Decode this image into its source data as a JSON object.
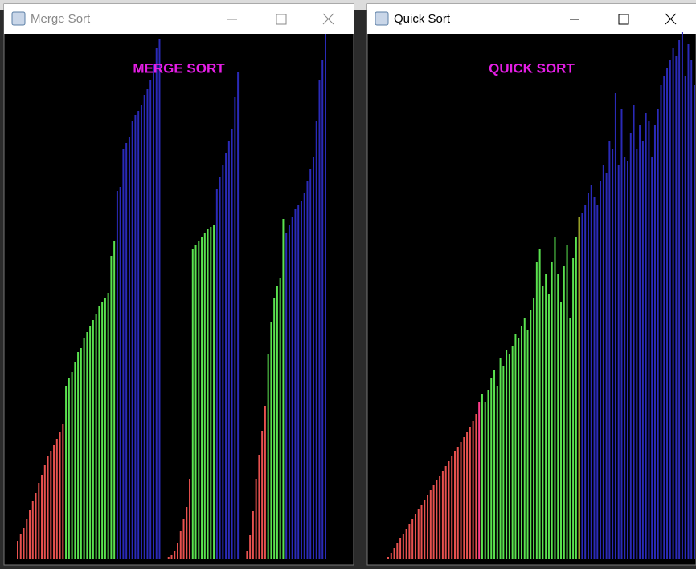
{
  "windows": [
    {
      "title": "Merge Sort",
      "heading": "MERGE SORT",
      "segments": [
        {
          "color": "#e8514f",
          "values": [
            23,
            31,
            39,
            50,
            61,
            73,
            83,
            95,
            105,
            117,
            129,
            135,
            142,
            150,
            158,
            168
          ]
        },
        {
          "color": "#5ae24f",
          "values": [
            215,
            225,
            233,
            245,
            258,
            263,
            275,
            282,
            290,
            298,
            305,
            315,
            320,
            325,
            331,
            377,
            395
          ]
        },
        {
          "color": "#2a2ab8",
          "values": [
            458,
            463,
            510,
            517,
            525,
            545,
            552,
            557,
            565,
            577,
            585,
            595,
            615,
            635,
            647,
            0,
            0
          ]
        },
        {
          "color": "#e8514f",
          "values": [
            3,
            5,
            10,
            20,
            35,
            50,
            65,
            100
          ]
        },
        {
          "color": "#5ae24f",
          "values": [
            385,
            390,
            395,
            400,
            405,
            410,
            413,
            415
          ]
        },
        {
          "color": "#2a2ab8",
          "values": [
            460,
            475,
            490,
            505,
            520,
            535,
            575,
            605,
            0,
            0
          ]
        },
        {
          "color": "#e8514f",
          "values": [
            10,
            30,
            60,
            100,
            130,
            160,
            190
          ]
        },
        {
          "color": "#5ae24f",
          "values": [
            255,
            295,
            325,
            340,
            350,
            423
          ]
        },
        {
          "color": "#2a2ab8",
          "values": [
            405,
            415,
            425,
            435,
            440,
            445,
            455,
            470,
            485,
            500,
            545,
            595,
            620,
            653
          ]
        }
      ]
    },
    {
      "title": "Quick Sort",
      "heading": "QUICK SORT",
      "segments": [
        {
          "color": "#e8514f",
          "values": [
            3,
            8,
            14,
            20,
            26,
            32,
            38,
            44,
            50,
            56,
            62,
            68,
            74,
            80,
            86,
            92,
            98,
            104,
            110,
            116,
            122,
            128,
            134,
            140,
            146,
            152,
            158,
            164,
            172,
            180
          ]
        },
        {
          "color": "#ff3c8c",
          "values": [
            195
          ]
        },
        {
          "color": "#5ae24f",
          "values": [
            205,
            195,
            210,
            225,
            235,
            215,
            250,
            240,
            260,
            255,
            265,
            280,
            275,
            290,
            300,
            285,
            310,
            325,
            370,
            385,
            340,
            355,
            330,
            370,
            400,
            355,
            320,
            365,
            390,
            300,
            375,
            400
          ]
        },
        {
          "color": "#e6f03c",
          "values": [
            425
          ]
        },
        {
          "color": "#2a2ab8",
          "values": [
            430,
            440,
            455,
            465,
            450,
            440,
            470,
            490,
            480,
            520,
            510,
            580,
            490,
            560,
            500,
            495,
            530,
            565,
            510,
            540,
            520,
            555,
            545,
            500,
            540,
            560,
            590,
            600,
            610,
            620,
            635,
            625,
            645,
            655,
            600,
            640,
            620,
            590
          ]
        }
      ]
    }
  ]
}
